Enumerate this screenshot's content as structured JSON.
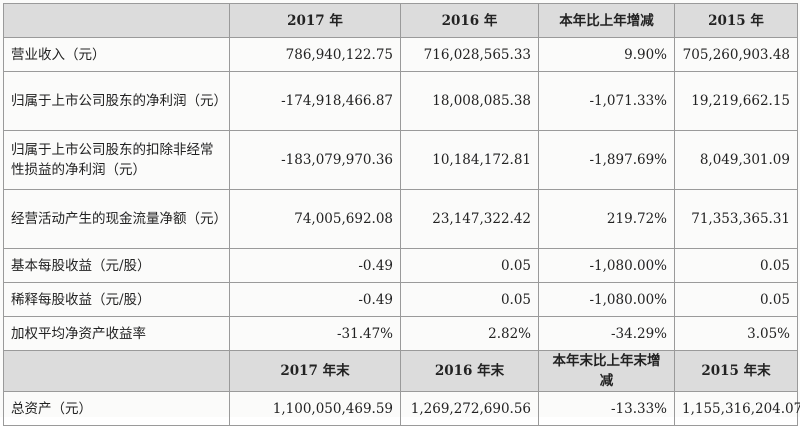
{
  "table": {
    "header1": [
      "",
      "2017 年",
      "2016 年",
      "本年比上年增减",
      "2015 年"
    ],
    "rows1": [
      {
        "label": "营业收入（元）",
        "v": [
          "786,940,122.75",
          "716,028,565.33",
          "9.90%",
          "705,260,903.48"
        ]
      },
      {
        "label": "归属于上市公司股东的净利润（元）",
        "v": [
          "-174,918,466.87",
          "18,008,085.38",
          "-1,071.33%",
          "19,219,662.15"
        ]
      },
      {
        "label": "归属于上市公司股东的扣除非经常性损益的净利润（元）",
        "v": [
          "-183,079,970.36",
          "10,184,172.81",
          "-1,897.69%",
          "8,049,301.09"
        ]
      },
      {
        "label": "经营活动产生的现金流量净额（元）",
        "v": [
          "74,005,692.08",
          "23,147,322.42",
          "219.72%",
          "71,353,365.31"
        ]
      },
      {
        "label": "基本每股收益（元/股）",
        "v": [
          "-0.49",
          "0.05",
          "-1,080.00%",
          "0.05"
        ]
      },
      {
        "label": "稀释每股收益（元/股）",
        "v": [
          "-0.49",
          "0.05",
          "-1,080.00%",
          "0.05"
        ]
      },
      {
        "label": "加权平均净资产收益率",
        "v": [
          "-31.47%",
          "2.82%",
          "-34.29%",
          "3.05%"
        ]
      }
    ],
    "header2": [
      "",
      "2017 年末",
      "2016 年末",
      "本年末比上年末增减",
      "2015 年末"
    ],
    "rows2": [
      {
        "label": "总资产（元）",
        "v": [
          "1,100,050,469.59",
          "1,269,272,690.56",
          "-13.33%",
          "1,155,316,204.07"
        ]
      }
    ]
  }
}
